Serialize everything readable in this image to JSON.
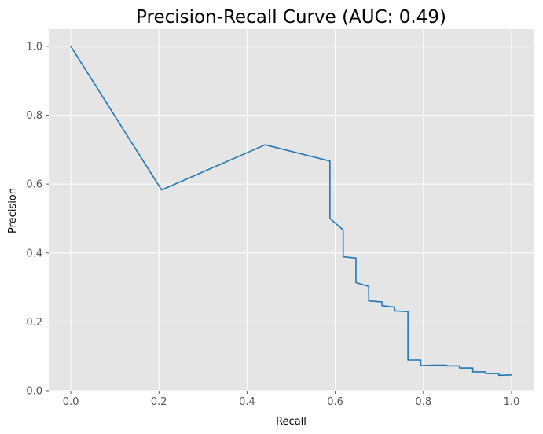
{
  "chart_data": {
    "type": "line",
    "title": "Precision-Recall Curve (AUC: 0.49)",
    "xlabel": "Recall",
    "ylabel": "Precision",
    "xlim": [
      -0.05,
      1.05
    ],
    "ylim": [
      0.0,
      1.05
    ],
    "xticks": [
      0.0,
      0.2,
      0.4,
      0.6,
      0.8,
      1.0
    ],
    "xtick_labels": [
      "0.0",
      "0.2",
      "0.4",
      "0.6",
      "0.8",
      "1.0"
    ],
    "yticks": [
      0.0,
      0.2,
      0.4,
      0.6,
      0.8,
      1.0
    ],
    "ytick_labels": [
      "0.0",
      "0.2",
      "0.4",
      "0.6",
      "0.8",
      "1.0"
    ],
    "grid": true,
    "background": "#e5e5e5",
    "grid_color": "#ffffff",
    "series": [
      {
        "color": "#1f77b4",
        "x": [
          0.0,
          0.206,
          0.441,
          0.588,
          0.588,
          0.618,
          0.618,
          0.647,
          0.647,
          0.676,
          0.676,
          0.706,
          0.706,
          0.735,
          0.735,
          0.765,
          0.765,
          0.794,
          0.794,
          0.824,
          0.853,
          0.853,
          0.882,
          0.882,
          0.912,
          0.912,
          0.941,
          0.941,
          0.971,
          0.971,
          1.0
        ],
        "y": [
          1.0,
          0.583,
          0.714,
          0.667,
          0.5,
          0.467,
          0.389,
          0.385,
          0.314,
          0.303,
          0.261,
          0.258,
          0.247,
          0.243,
          0.232,
          0.23,
          0.089,
          0.089,
          0.073,
          0.074,
          0.074,
          0.072,
          0.072,
          0.066,
          0.066,
          0.055,
          0.055,
          0.05,
          0.05,
          0.045,
          0.046
        ]
      }
    ]
  }
}
